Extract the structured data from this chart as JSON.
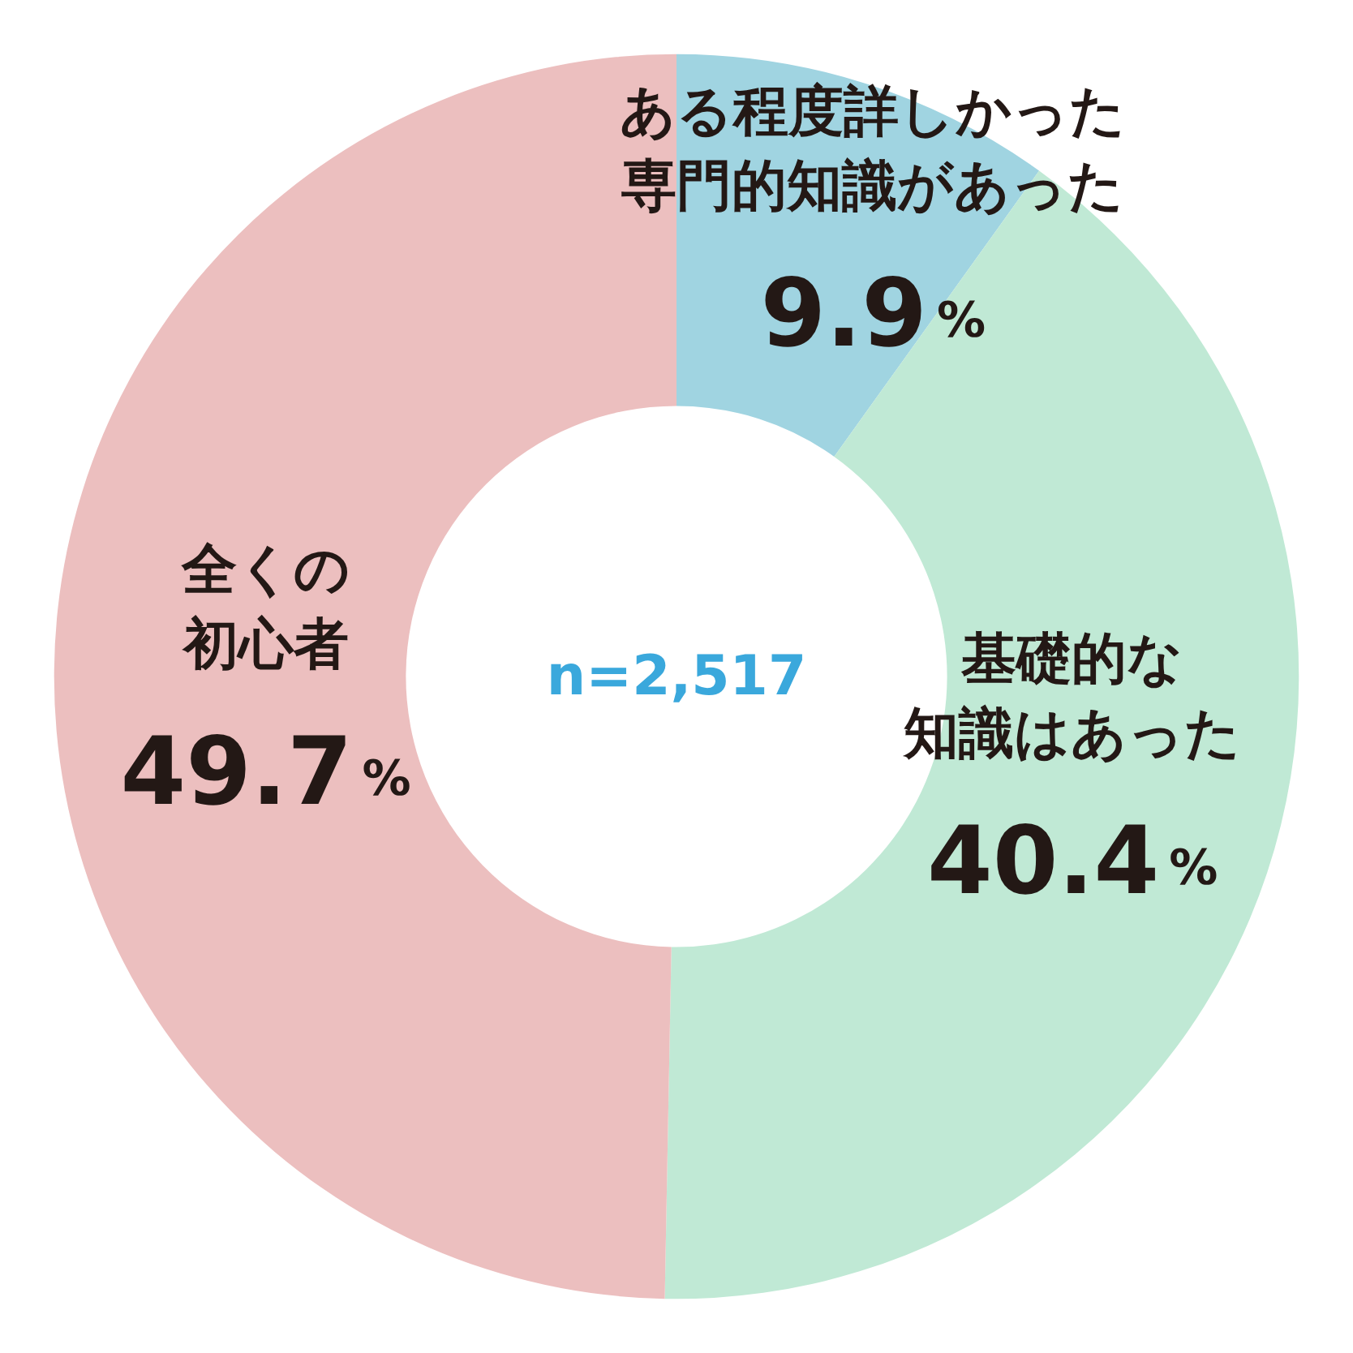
{
  "chart_data": {
    "type": "donut",
    "categories": [
      "ある程度詳しかった専門的知識があった",
      "基礎的な知識はあった",
      "全くの初心者"
    ],
    "values": [
      9.9,
      40.4,
      49.7
    ],
    "colors": [
      "#a0d4e1",
      "#c0e9d5",
      "#ecbfbf"
    ],
    "value_labels": [
      "9.9%",
      "40.4%",
      "49.7%"
    ],
    "annotations": [
      "n=2,517"
    ]
  }
}
